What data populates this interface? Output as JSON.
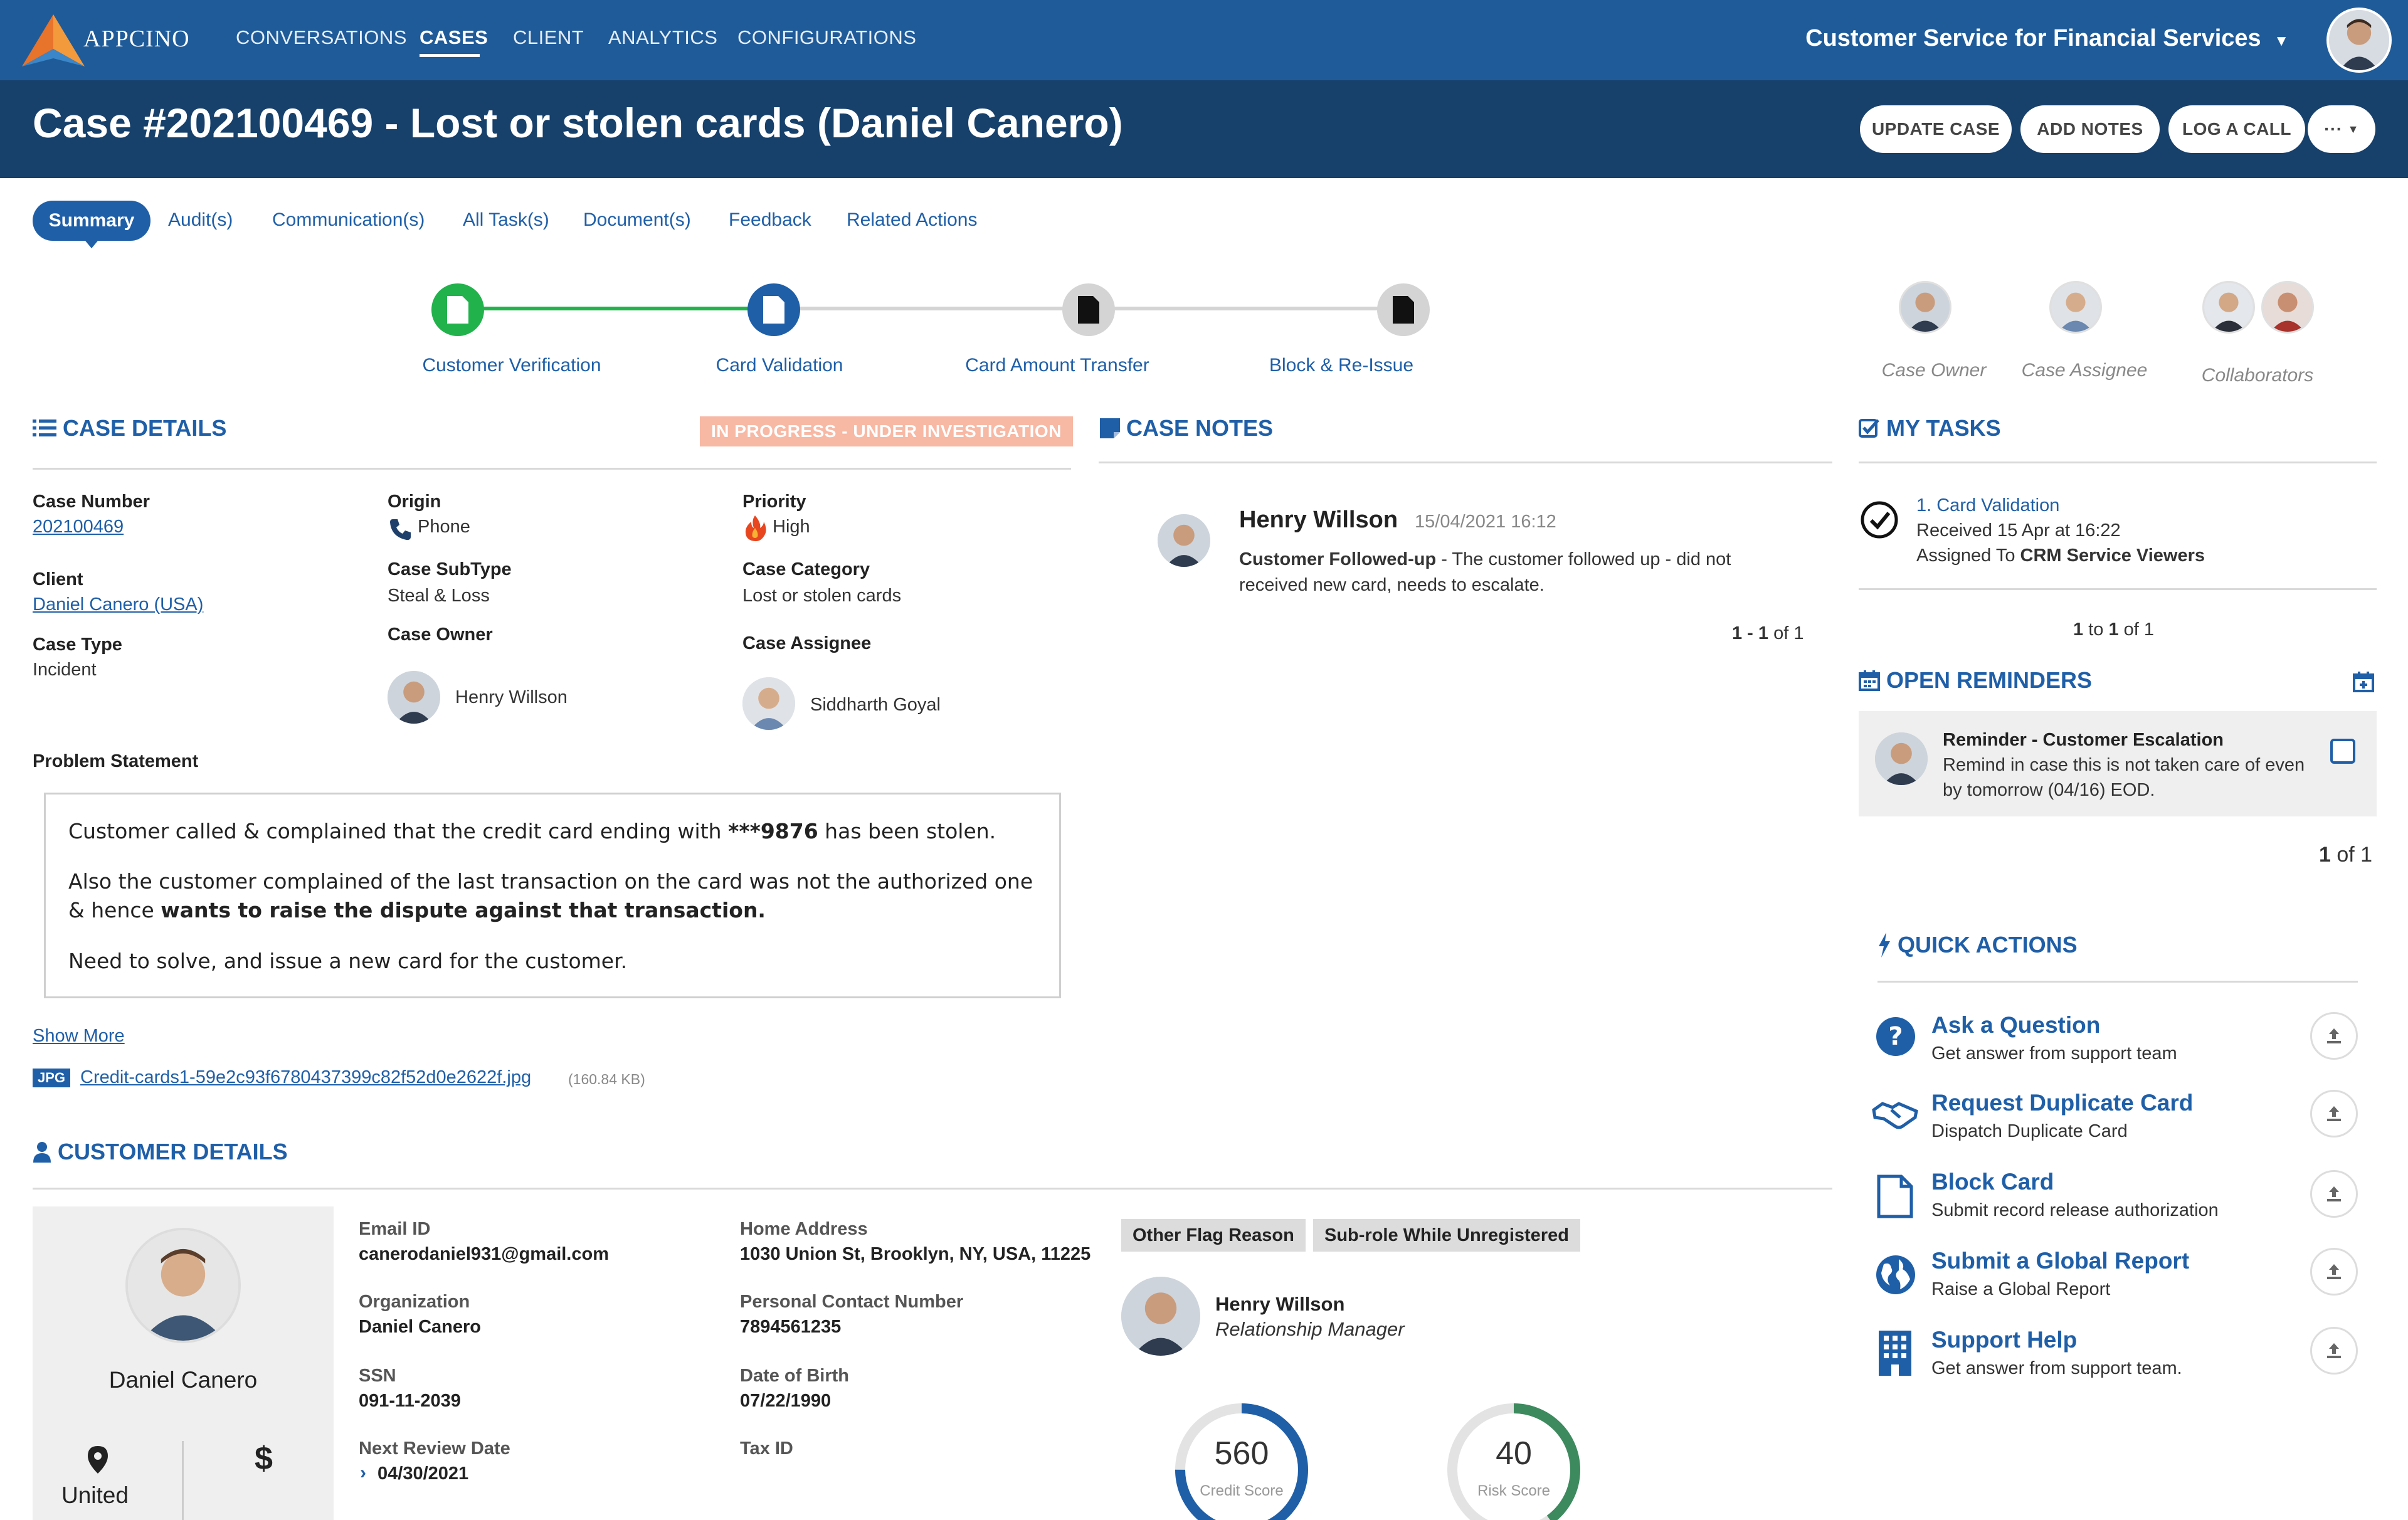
{
  "app": {
    "logo_text": "APPCINO",
    "nav": [
      "CONVERSATIONS",
      "CASES",
      "CLIENT",
      "ANALYTICS",
      "CONFIGURATIONS"
    ],
    "app_switcher": "Customer Service for Financial Services"
  },
  "case": {
    "title": "Case #202100469 - Lost or stolen cards (Daniel Canero)",
    "actions": [
      "UPDATE CASE",
      "ADD NOTES",
      "LOG A CALL",
      "···"
    ]
  },
  "tabs": [
    "Summary",
    "Audit(s)",
    "Communication(s)",
    "All Task(s)",
    "Document(s)",
    "Feedback",
    "Related Actions"
  ],
  "stepper": [
    "Customer Verification",
    "Card Validation",
    "Card Amount Transfer",
    "Block & Re-Issue"
  ],
  "people": {
    "owner": "Case Owner",
    "assignee": "Case Assignee",
    "collaborators": "Collaborators"
  },
  "case_details": {
    "heading": "CASE DETAILS",
    "status": "IN PROGRESS - UNDER INVESTIGATION",
    "case_number_label": "Case Number",
    "case_number": "202100469",
    "client_label": "Client",
    "client": "Daniel Canero (USA)",
    "case_type_label": "Case Type",
    "case_type": "Incident",
    "origin_label": "Origin",
    "origin": "Phone",
    "subtype_label": "Case SubType",
    "subtype": "Steal & Loss",
    "owner_label": "Case Owner",
    "owner": "Henry Willson",
    "priority_label": "Priority",
    "priority": "High",
    "category_label": "Case Category",
    "category": "Lost or stolen cards",
    "assignee_label": "Case Assignee",
    "assignee": "Siddharth Goyal",
    "problem_label": "Problem Statement",
    "problem_p1_a": "Customer called & complained that the credit card ending with ",
    "problem_p1_b": "***9876",
    "problem_p1_c": " has been stolen.",
    "problem_p2_a": "Also the customer complained of the last transaction on the card was not the authorized one & hence ",
    "problem_p2_b": "wants to raise the dispute against that transaction.",
    "problem_p3": "Need to solve, and issue a new card for the customer.",
    "show_more": "Show More",
    "file_type": "JPG",
    "file_name": "Credit-cards1-59e2c93f6780437399c82f52d0e2622f.jpg",
    "file_size": "(160.84 KB)"
  },
  "case_notes": {
    "heading": "CASE NOTES",
    "author": "Henry Willson",
    "timestamp": "15/04/2021 16:12",
    "note_bold": "Customer Followed-up",
    "note_text": " - The customer followed up - did not",
    "note_text2": "received new card, needs to escalate.",
    "pager_a": "1 - 1",
    "pager_b": " of 1"
  },
  "my_tasks": {
    "heading": "MY TASKS",
    "task_title": "1. Card Validation",
    "task_received": "Received 15 Apr at 16:22",
    "task_assigned_prefix": "Assigned To ",
    "task_assigned_to": "CRM Service Viewers",
    "pager_a": "1",
    "pager_b": " to ",
    "pager_c": "1",
    "pager_d": " of 1"
  },
  "reminders": {
    "heading": "OPEN REMINDERS",
    "title": "Reminder - Customer Escalation",
    "line1": "Remind in case this is not taken care of even",
    "line2": "by tomorrow (04/16) EOD.",
    "pager_a": "1",
    "pager_b": " of 1"
  },
  "quick_actions": {
    "heading": "QUICK ACTIONS",
    "items": [
      {
        "title": "Ask a Question",
        "sub": "Get answer from support team"
      },
      {
        "title": "Request Duplicate Card",
        "sub": "Dispatch Duplicate Card"
      },
      {
        "title": "Block Card",
        "sub": "Submit record release authorization"
      },
      {
        "title": "Submit a Global Report",
        "sub": "Raise a Global Report"
      },
      {
        "title": "Support Help",
        "sub": "Get answer from support team."
      }
    ]
  },
  "customer": {
    "heading": "CUSTOMER DETAILS",
    "name": "Daniel Canero",
    "location": "United",
    "email_label": "Email ID",
    "email": "canerodaniel931@gmail.com",
    "org_label": "Organization",
    "org": "Daniel Canero",
    "ssn_label": "SSN",
    "ssn": "091-11-2039",
    "review_label": "Next Review Date",
    "review": "04/30/2021",
    "address_label": "Home Address",
    "address": "1030 Union St, Brooklyn, NY, USA, 11225",
    "phone_label": "Personal Contact Number",
    "phone": "7894561235",
    "dob_label": "Date of Birth",
    "dob": "07/22/1990",
    "tax_label": "Tax ID",
    "flag1": "Other Flag Reason",
    "flag2": "Sub-role While Unregistered",
    "rm_name": "Henry Willson",
    "rm_role": "Relationship Manager",
    "credit_score": "560",
    "credit_label": "Credit Score",
    "credit_fraction": 0.75,
    "risk_score": "40",
    "risk_label": "Risk Score",
    "risk_fraction": 0.4
  },
  "colors": {
    "brand": "#1f5b99",
    "titlebar": "#17406b",
    "link": "#1f5fa8",
    "done": "#22b24c",
    "status": "#f7b8a4"
  }
}
